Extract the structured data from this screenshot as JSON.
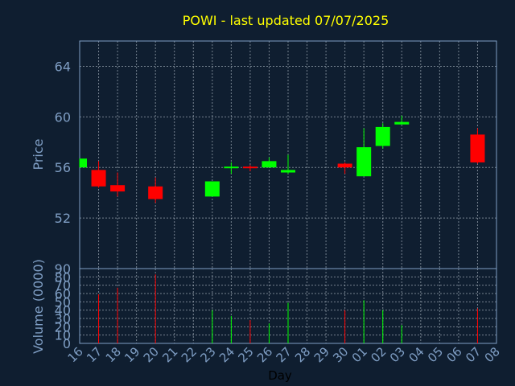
{
  "chart_data": {
    "type": "candlestick",
    "title": "POWI - last updated 07/07/2025",
    "xlabel": "Day",
    "price_ylabel": "Price",
    "volume_ylabel": "Volume (0000)",
    "x_ticks": [
      "16",
      "17",
      "18",
      "19",
      "20",
      "21",
      "22",
      "23",
      "24",
      "25",
      "26",
      "27",
      "28",
      "29",
      "30",
      "01",
      "02",
      "03",
      "04",
      "05",
      "06",
      "07",
      "08"
    ],
    "price_ylim": [
      48,
      66
    ],
    "price_yticks": [
      "52",
      "56",
      "60",
      "64"
    ],
    "volume_ylim": [
      0,
      90
    ],
    "volume_yticks": [
      "0",
      "10",
      "20",
      "30",
      "40",
      "50",
      "60",
      "70",
      "80",
      "90"
    ],
    "grid": true,
    "colors": {
      "up": "#00ff00",
      "down": "#ff0000",
      "title": "#ffff00",
      "axis": "#7f9ec4",
      "background": "#0f1e30"
    },
    "candles": [
      {
        "day": "16",
        "open": 56.0,
        "high": 56.7,
        "low": 56.0,
        "close": 56.7,
        "volume": 0
      },
      {
        "day": "17",
        "open": 55.8,
        "high": 56.5,
        "low": 54.4,
        "close": 54.5,
        "volume": 59
      },
      {
        "day": "18",
        "open": 54.6,
        "high": 55.6,
        "low": 53.7,
        "close": 54.1,
        "volume": 67
      },
      {
        "day": "20",
        "open": 54.5,
        "high": 55.2,
        "low": 53.2,
        "close": 53.5,
        "volume": 83
      },
      {
        "day": "23",
        "open": 53.7,
        "high": 54.9,
        "low": 53.7,
        "close": 54.9,
        "volume": 40
      },
      {
        "day": "24",
        "open": 55.9,
        "high": 56.4,
        "low": 55.5,
        "close": 56.0,
        "volume": 33
      },
      {
        "day": "25",
        "open": 56.0,
        "high": 56.2,
        "low": 55.7,
        "close": 55.9,
        "volume": 28
      },
      {
        "day": "26",
        "open": 56.0,
        "high": 56.8,
        "low": 56.0,
        "close": 56.5,
        "volume": 24
      },
      {
        "day": "27",
        "open": 55.6,
        "high": 57.0,
        "low": 55.5,
        "close": 55.8,
        "volume": 49
      },
      {
        "day": "30",
        "open": 56.3,
        "high": 56.4,
        "low": 55.5,
        "close": 56.0,
        "volume": 40
      },
      {
        "day": "01",
        "open": 55.3,
        "high": 59.1,
        "low": 55.3,
        "close": 57.6,
        "volume": 52
      },
      {
        "day": "02",
        "open": 57.7,
        "high": 59.5,
        "low": 57.5,
        "close": 59.2,
        "volume": 40
      },
      {
        "day": "03",
        "open": 59.4,
        "high": 60.1,
        "low": 59.4,
        "close": 59.6,
        "volume": 22
      },
      {
        "day": "07",
        "open": 58.6,
        "high": 59.1,
        "low": 56.3,
        "close": 56.4,
        "volume": 42
      }
    ]
  }
}
